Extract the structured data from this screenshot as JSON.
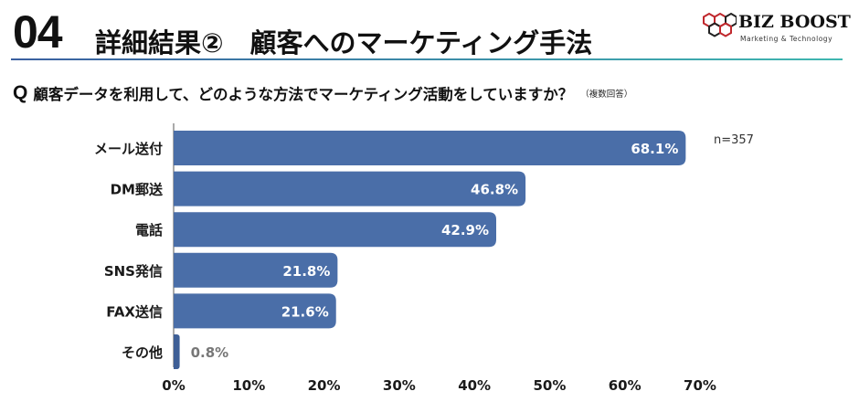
{
  "header": {
    "section_number": "04",
    "title": "詳細結果②　顧客へのマーケティング手法",
    "logo_text": "BIZ BOOST",
    "logo_subtitle": "Marketing & Technology"
  },
  "question": {
    "mark": "Q",
    "text": "顧客データを利用して、どのような方法でマーケティング活動をしていますか？",
    "note": "（複数回答）"
  },
  "colors": {
    "bar": "#4a6ea8",
    "bar_small": "#3e5f96",
    "value_inside": "#ffffff",
    "value_outside": "#777777",
    "accent_start": "#3a5fa0",
    "accent_end": "#3fb7b0"
  },
  "chart_data": {
    "type": "bar",
    "orientation": "horizontal",
    "categories": [
      "メール送付",
      "DM郵送",
      "電話",
      "SNS発信",
      "FAX送信",
      "その他"
    ],
    "values": [
      68.1,
      46.8,
      42.9,
      21.8,
      21.6,
      0.8
    ],
    "value_labels": [
      "68.1%",
      "46.8%",
      "42.9%",
      "21.8%",
      "21.6%",
      "0.8%"
    ],
    "xlim": [
      0,
      70
    ],
    "xticks": [
      0,
      10,
      20,
      30,
      40,
      50,
      60,
      70
    ],
    "xtick_labels": [
      "0%",
      "10%",
      "20%",
      "30%",
      "40%",
      "50%",
      "60%",
      "70%"
    ],
    "sample_size": "n=357",
    "grid": false
  }
}
